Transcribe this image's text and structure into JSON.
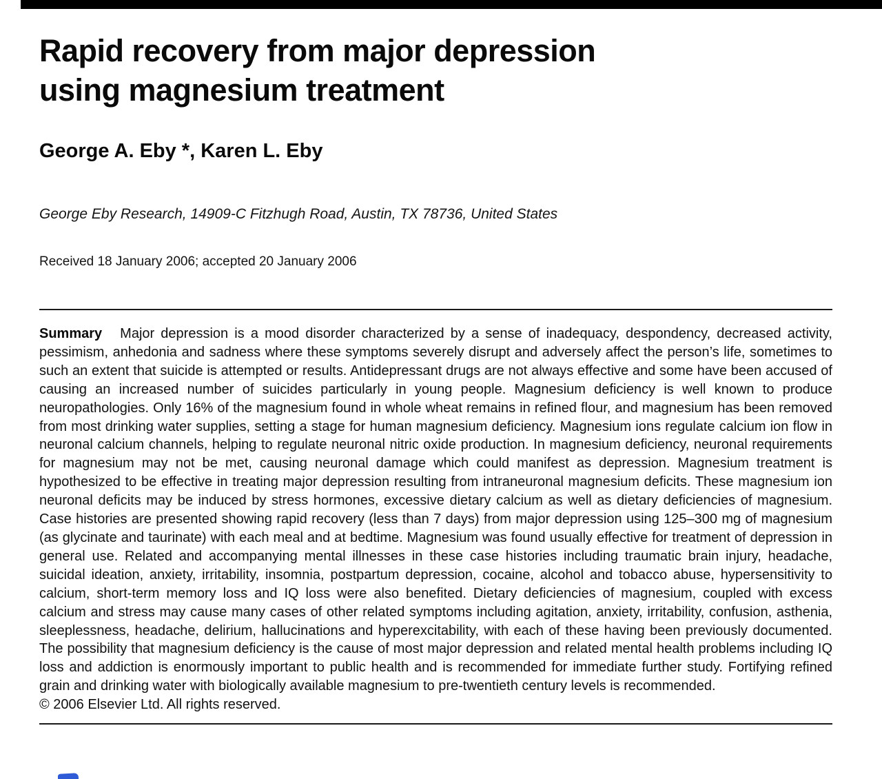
{
  "paper": {
    "title_line1": "Rapid recovery from major depression",
    "title_line2": "using magnesium treatment",
    "authors": "George A. Eby *, Karen L. Eby",
    "affiliation": "George Eby Research, 14909-C Fitzhugh Road, Austin, TX 78736, United States",
    "received": "Received 18 January 2006; accepted 20 January 2006",
    "summary_label": "Summary",
    "summary_text": "Major depression is a mood disorder characterized by a sense of inadequacy, despondency, decreased activity, pessimism, anhedonia and sadness where these symptoms severely disrupt and adversely affect the person’s life, sometimes to such an extent that suicide is attempted or results. Antidepressant drugs are not always effective and some have been accused of causing an increased number of suicides particularly in young people. Magnesium deficiency is well known to produce neuropathologies. Only 16% of the magnesium found in whole wheat remains in refined flour, and magnesium has been removed from most drinking water supplies, setting a stage for human magnesium deficiency. Magnesium ions regulate calcium ion flow in neuronal calcium channels, helping to regulate neuronal nitric oxide production. In magnesium deficiency, neuronal requirements for magnesium may not be met, causing neuronal damage which could manifest as depression. Magnesium treatment is hypothesized to be effective in treating major depression resulting from intraneuronal magnesium deficits. These magnesium ion neuronal deficits may be induced by stress hormones, excessive dietary calcium as well as dietary deficiencies of magnesium. Case histories are presented showing rapid recovery (less than 7 days) from major depression using 125–300 mg of magnesium (as glycinate and taurinate) with each meal and at bedtime. Magnesium was found usually effective for treatment of depression in general use. Related and accompanying mental illnesses in these case histories including traumatic brain injury, headache, suicidal ideation, anxiety, irritability, insomnia, postpartum depression, cocaine, alcohol and tobacco abuse, hypersensitivity to calcium, short-term memory loss and IQ loss were also benefited. Dietary deficiencies of magnesium, coupled with excess calcium and stress may cause many cases of other related symptoms including agitation, anxiety, irritability, confusion, asthenia, sleeplessness, headache, delirium, hallucinations and hyperexcitability, with each of these having been previously documented. The possibility that magnesium deficiency is the cause of most major depression and related mental health problems including IQ loss and addiction is enormously important to public health and is recommended for immediate further study. Fortifying refined grain and drinking water with biologically available magnesium to pre-twentieth century levels is recommended.",
    "copyright": "© 2006 Elsevier Ltd. All rights reserved."
  },
  "colors": {
    "text": "#111111",
    "top_bar": "#000000",
    "rule": "#1a1a1a",
    "blue_mark": "#2f5bd7"
  }
}
